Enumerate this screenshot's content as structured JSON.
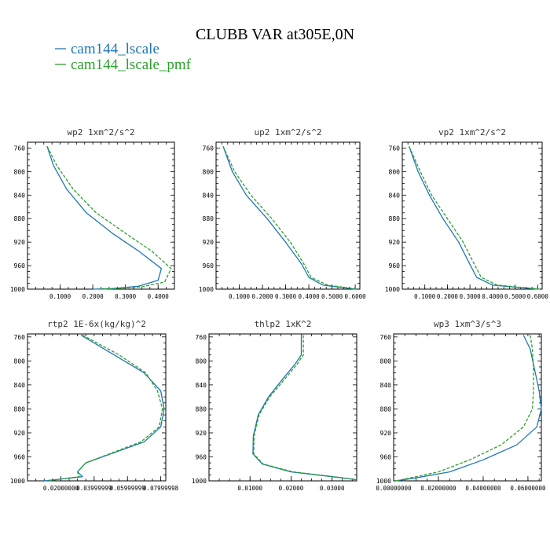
{
  "figure": {
    "title": "CLUBB VAR at305E,0N",
    "legend": [
      {
        "name": "cam144_lscale",
        "color": "#1f77b4"
      },
      {
        "name": "cam144_lscale_pmf",
        "color": "#2ca02c"
      }
    ]
  },
  "chart_data": [
    {
      "type": "line",
      "title": "wp2  1xm^2/s^2",
      "y_reversed": true,
      "ylim": [
        1000,
        750
      ],
      "xlim": [
        0,
        0.45
      ],
      "y_ticks": [
        "760",
        "800",
        "840",
        "880",
        "920",
        "960",
        "1000"
      ],
      "x_ticks": [
        {
          "v": 0.1,
          "label": "0.1000"
        },
        {
          "v": 0.2,
          "label": "0.2000"
        },
        {
          "v": 0.3,
          "label": "0.3000"
        },
        {
          "v": 0.4,
          "label": "0.4000"
        }
      ],
      "series": [
        {
          "name": "cam144_lscale",
          "color": "#1f77b4",
          "dash": "",
          "points": [
            [
              0.06,
              757
            ],
            [
              0.08,
              790
            ],
            [
              0.12,
              830
            ],
            [
              0.18,
              870
            ],
            [
              0.26,
              905
            ],
            [
              0.34,
              935
            ],
            [
              0.41,
              965
            ],
            [
              0.4,
              985
            ],
            [
              0.34,
              995
            ],
            [
              0.26,
              999
            ],
            [
              0.2,
              1000
            ]
          ]
        },
        {
          "name": "cam144_lscale_pmf",
          "color": "#2ca02c",
          "dash": "4,2",
          "points": [
            [
              0.06,
              757
            ],
            [
              0.09,
              790
            ],
            [
              0.14,
              830
            ],
            [
              0.21,
              870
            ],
            [
              0.3,
              905
            ],
            [
              0.38,
              935
            ],
            [
              0.44,
              965
            ],
            [
              0.42,
              988
            ],
            [
              0.35,
              996
            ],
            [
              0.27,
              999
            ],
            [
              0.22,
              1000
            ]
          ]
        }
      ]
    },
    {
      "type": "line",
      "title": "up2  1xm^2/s^2",
      "y_reversed": true,
      "ylim": [
        1000,
        750
      ],
      "xlim": [
        0,
        0.62
      ],
      "y_ticks": [
        "760",
        "800",
        "840",
        "880",
        "920",
        "960",
        "1000"
      ],
      "x_ticks": [
        {
          "v": 0.1,
          "label": "0.1000"
        },
        {
          "v": 0.2,
          "label": "0.2000"
        },
        {
          "v": 0.3,
          "label": "0.3000"
        },
        {
          "v": 0.4,
          "label": "0.4000"
        },
        {
          "v": 0.5,
          "label": "0.5000"
        },
        {
          "v": 0.6,
          "label": "0.6000"
        }
      ],
      "series": [
        {
          "name": "cam144_lscale",
          "color": "#1f77b4",
          "dash": "",
          "points": [
            [
              0.03,
              757
            ],
            [
              0.07,
              800
            ],
            [
              0.13,
              840
            ],
            [
              0.22,
              880
            ],
            [
              0.3,
              920
            ],
            [
              0.37,
              958
            ],
            [
              0.4,
              980
            ],
            [
              0.46,
              993
            ],
            [
              0.6,
              1000
            ]
          ]
        },
        {
          "name": "cam144_lscale_pmf",
          "color": "#2ca02c",
          "dash": "4,2",
          "points": [
            [
              0.03,
              757
            ],
            [
              0.08,
              800
            ],
            [
              0.15,
              840
            ],
            [
              0.24,
              880
            ],
            [
              0.32,
              920
            ],
            [
              0.38,
              958
            ],
            [
              0.41,
              980
            ],
            [
              0.48,
              993
            ],
            [
              0.61,
              1000
            ]
          ]
        }
      ]
    },
    {
      "type": "line",
      "title": "vp2  1xm^2/s^2",
      "y_reversed": true,
      "ylim": [
        1000,
        750
      ],
      "xlim": [
        0,
        0.62
      ],
      "y_ticks": [
        "760",
        "800",
        "840",
        "880",
        "920",
        "960",
        "1000"
      ],
      "x_ticks": [
        {
          "v": 0.1,
          "label": "0.1000"
        },
        {
          "v": 0.2,
          "label": "0.2000"
        },
        {
          "v": 0.3,
          "label": "0.3000"
        },
        {
          "v": 0.4,
          "label": "0.4000"
        },
        {
          "v": 0.5,
          "label": "0.5000"
        },
        {
          "v": 0.6,
          "label": "0.6000"
        }
      ],
      "series": [
        {
          "name": "cam144_lscale",
          "color": "#1f77b4",
          "dash": "",
          "points": [
            [
              0.03,
              757
            ],
            [
              0.07,
              800
            ],
            [
              0.12,
              840
            ],
            [
              0.18,
              880
            ],
            [
              0.25,
              920
            ],
            [
              0.3,
              958
            ],
            [
              0.33,
              980
            ],
            [
              0.4,
              993
            ],
            [
              0.6,
              1000
            ]
          ]
        },
        {
          "name": "cam144_lscale_pmf",
          "color": "#2ca02c",
          "dash": "4,2",
          "points": [
            [
              0.03,
              757
            ],
            [
              0.08,
              800
            ],
            [
              0.13,
              840
            ],
            [
              0.2,
              880
            ],
            [
              0.27,
              920
            ],
            [
              0.32,
              958
            ],
            [
              0.35,
              980
            ],
            [
              0.42,
              993
            ],
            [
              0.61,
              1000
            ]
          ]
        }
      ]
    },
    {
      "type": "line",
      "title": "rtp2  1E-6x(kg/kg)^2",
      "y_reversed": true,
      "ylim": [
        1000,
        755
      ],
      "xlim": [
        0,
        0.083
      ],
      "y_ticks": [
        "760",
        "800",
        "840",
        "880",
        "920",
        "960",
        "1000"
      ],
      "x_ticks": [
        {
          "v": 0.02,
          "label": "0.02000000"
        },
        {
          "v": 0.04,
          "label": "0.03999999"
        },
        {
          "v": 0.06,
          "label": "0.05999999"
        },
        {
          "v": 0.08,
          "label": "0.07999998"
        }
      ],
      "series": [
        {
          "name": "cam144_lscale",
          "color": "#1f77b4",
          "dash": "",
          "points": [
            [
              0.032,
              757
            ],
            [
              0.052,
              790
            ],
            [
              0.07,
              820
            ],
            [
              0.08,
              850
            ],
            [
              0.082,
              880
            ],
            [
              0.08,
              910
            ],
            [
              0.07,
              935
            ],
            [
              0.05,
              955
            ],
            [
              0.035,
              970
            ],
            [
              0.03,
              985
            ],
            [
              0.033,
              993
            ],
            [
              0.01,
              1000
            ]
          ]
        },
        {
          "name": "cam144_lscale_pmf",
          "color": "#2ca02c",
          "dash": "4,2",
          "points": [
            [
              0.033,
              757
            ],
            [
              0.055,
              790
            ],
            [
              0.071,
              820
            ],
            [
              0.078,
              850
            ],
            [
              0.081,
              880
            ],
            [
              0.079,
              910
            ],
            [
              0.068,
              935
            ],
            [
              0.049,
              955
            ],
            [
              0.035,
              970
            ],
            [
              0.03,
              985
            ],
            [
              0.031,
              993
            ],
            [
              0.012,
              1000
            ]
          ]
        }
      ]
    },
    {
      "type": "line",
      "title": "thlp2  1xK^2",
      "y_reversed": true,
      "ylim": [
        1000,
        755
      ],
      "xlim": [
        0,
        0.036
      ],
      "y_ticks": [
        "760",
        "800",
        "840",
        "880",
        "920",
        "960",
        "1000"
      ],
      "x_ticks": [
        {
          "v": 0.01,
          "label": "0.01000"
        },
        {
          "v": 0.02,
          "label": "0.02000"
        },
        {
          "v": 0.03,
          "label": "0.03000"
        }
      ],
      "series": [
        {
          "name": "cam144_lscale",
          "color": "#1f77b4",
          "dash": "",
          "points": [
            [
              0.0225,
              757
            ],
            [
              0.0225,
              790
            ],
            [
              0.021,
              805
            ],
            [
              0.018,
              830
            ],
            [
              0.0145,
              860
            ],
            [
              0.012,
              890
            ],
            [
              0.0108,
              925
            ],
            [
              0.0107,
              955
            ],
            [
              0.013,
              972
            ],
            [
              0.02,
              985
            ],
            [
              0.03,
              993
            ],
            [
              0.036,
              998
            ]
          ]
        },
        {
          "name": "cam144_lscale_pmf",
          "color": "#2ca02c",
          "dash": "4,2",
          "points": [
            [
              0.023,
              757
            ],
            [
              0.023,
              790
            ],
            [
              0.0215,
              805
            ],
            [
              0.0185,
              830
            ],
            [
              0.0148,
              860
            ],
            [
              0.0122,
              890
            ],
            [
              0.011,
              925
            ],
            [
              0.0109,
              955
            ],
            [
              0.0132,
              972
            ],
            [
              0.0205,
              985
            ],
            [
              0.0305,
              993
            ],
            [
              0.0358,
              998
            ]
          ]
        }
      ]
    },
    {
      "type": "line",
      "title": "wp3  1xm^3/s^3",
      "y_reversed": true,
      "ylim": [
        1000,
        755
      ],
      "xlim": [
        0,
        0.066
      ],
      "y_ticks": [
        "760",
        "800",
        "840",
        "880",
        "920",
        "960",
        "1000"
      ],
      "x_ticks": [
        {
          "v": 0.0,
          "label": "0.00000000"
        },
        {
          "v": 0.02,
          "label": "0.02000000"
        },
        {
          "v": 0.04,
          "label": "0.04000000"
        },
        {
          "v": 0.06,
          "label": "0.06000000"
        }
      ],
      "series": [
        {
          "name": "cam144_lscale",
          "color": "#1f77b4",
          "dash": "",
          "points": [
            [
              0.058,
              757
            ],
            [
              0.061,
              780
            ],
            [
              0.063,
              815
            ],
            [
              0.065,
              850
            ],
            [
              0.066,
              880
            ],
            [
              0.064,
              910
            ],
            [
              0.055,
              940
            ],
            [
              0.04,
              965
            ],
            [
              0.025,
              985
            ],
            [
              0.01,
              995
            ],
            [
              0.001,
              1000
            ]
          ]
        },
        {
          "name": "cam144_lscale_pmf",
          "color": "#2ca02c",
          "dash": "4,2",
          "points": [
            [
              0.061,
              757
            ],
            [
              0.062,
              780
            ],
            [
              0.0625,
              815
            ],
            [
              0.0625,
              850
            ],
            [
              0.062,
              880
            ],
            [
              0.058,
              910
            ],
            [
              0.048,
              940
            ],
            [
              0.034,
              965
            ],
            [
              0.02,
              985
            ],
            [
              0.01,
              993
            ],
            [
              0.001,
              1000
            ]
          ]
        }
      ]
    }
  ]
}
